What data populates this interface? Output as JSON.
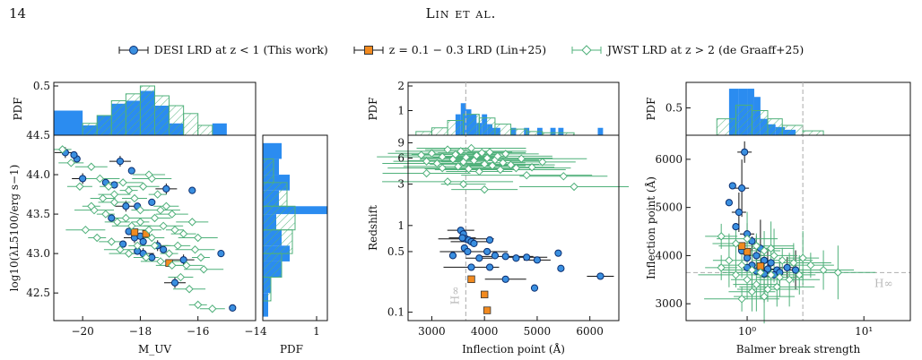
{
  "page": {
    "number": "14",
    "running_head": "Lin et al."
  },
  "legend": [
    {
      "label": "DESI LRD at z < 1  (This work)",
      "color": "#3a8fe0",
      "edge": "#0a2d6e",
      "marker": "circle"
    },
    {
      "label": "z = 0.1 − 0.3 LRD (Lin+25)",
      "color": "#f28a1f",
      "edge": "#333333",
      "marker": "square"
    },
    {
      "label": "JWST LRD at z > 2 (de Graaff+25)",
      "color": "#4fb07a",
      "edge": "#4fb07a",
      "marker": "diamond"
    }
  ],
  "colors": {
    "desi": "#3a8fe0",
    "lin": "#f28a1f",
    "jwst": "#4fb07a",
    "ref_line": "#b8b8b8",
    "hist_fill": "#2b8cf0"
  },
  "chart_data": [
    {
      "type": "scatter",
      "panel": "left",
      "xlabel": "M_UV",
      "ylabel": "log10(λL5100/erg s−1)",
      "xlim": [
        -21,
        -14
      ],
      "ylim": [
        42.15,
        44.5
      ],
      "xticks": [
        "−20",
        "−18",
        "−16",
        "−14"
      ],
      "yticks": [
        "42.5",
        "43.0",
        "43.5",
        "44.0",
        "44.5"
      ],
      "top_hist": {
        "ylabel": "PDF",
        "ytick": "0.5"
      },
      "side_hist": {
        "xlabel": "PDF",
        "xtick": "1"
      },
      "series": [
        {
          "name": "DESI LRD at z < 1  (This work)",
          "points": [
            [
              -20.6,
              44.28
            ],
            [
              -20.2,
              44.2
            ],
            [
              -20.3,
              44.25
            ],
            [
              -20.0,
              43.95
            ],
            [
              -19.2,
              43.9
            ],
            [
              -18.9,
              43.87
            ],
            [
              -18.7,
              44.17
            ],
            [
              -18.3,
              44.05
            ],
            [
              -19.0,
              43.45
            ],
            [
              -18.5,
              43.6
            ],
            [
              -18.1,
              43.6
            ],
            [
              -17.6,
              43.65
            ],
            [
              -17.1,
              43.82
            ],
            [
              -16.2,
              43.8
            ],
            [
              -18.4,
              43.28
            ],
            [
              -18.2,
              43.2
            ],
            [
              -18.0,
              43.22
            ],
            [
              -17.9,
              43.15
            ],
            [
              -17.4,
              43.1
            ],
            [
              -18.6,
              43.12
            ],
            [
              -18.1,
              43.03
            ],
            [
              -17.9,
              43.0
            ],
            [
              -17.6,
              42.95
            ],
            [
              -17.2,
              43.05
            ],
            [
              -16.5,
              42.92
            ],
            [
              -17.0,
              42.88
            ],
            [
              -15.2,
              43.0
            ],
            [
              -16.8,
              42.63
            ],
            [
              -14.8,
              42.31
            ]
          ]
        },
        {
          "name": "z = 0.1 − 0.3 LRD (Lin+25)",
          "points": [
            [
              -18.2,
              43.27
            ],
            [
              -17.8,
              43.25
            ],
            [
              -17.0,
              42.88
            ]
          ]
        },
        {
          "name": "JWST LRD at z > 2 (de Graaff+25)",
          "points": [
            [
              -20.7,
              44.32
            ],
            [
              -20.4,
              44.15
            ],
            [
              -19.7,
              44.1
            ],
            [
              -19.4,
              43.95
            ],
            [
              -19.1,
              43.85
            ],
            [
              -19.3,
              43.7
            ],
            [
              -18.9,
              43.75
            ],
            [
              -18.6,
              43.9
            ],
            [
              -18.4,
              43.8
            ],
            [
              -18.2,
              43.7
            ],
            [
              -17.9,
              43.85
            ],
            [
              -17.6,
              43.95
            ],
            [
              -17.4,
              43.75
            ],
            [
              -17.1,
              43.6
            ],
            [
              -16.9,
              43.5
            ],
            [
              -19.6,
              43.55
            ],
            [
              -19.2,
              43.5
            ],
            [
              -18.8,
              43.4
            ],
            [
              -18.5,
              43.45
            ],
            [
              -18.3,
              43.35
            ],
            [
              -18.0,
              43.4
            ],
            [
              -17.7,
              43.3
            ],
            [
              -17.5,
              43.45
            ],
            [
              -17.2,
              43.35
            ],
            [
              -16.8,
              43.3
            ],
            [
              -16.5,
              43.25
            ],
            [
              -16.2,
              43.4
            ],
            [
              -19.9,
              43.3
            ],
            [
              -19.5,
              43.2
            ],
            [
              -19.0,
              43.15
            ],
            [
              -18.7,
              43.05
            ],
            [
              -18.4,
              43.0
            ],
            [
              -18.1,
              43.1
            ],
            [
              -17.8,
              42.95
            ],
            [
              -17.5,
              43.1
            ],
            [
              -17.3,
              42.9
            ],
            [
              -17.0,
              43.0
            ],
            [
              -16.7,
              43.1
            ],
            [
              -16.4,
              42.85
            ],
            [
              -16.0,
              43.2
            ],
            [
              -19.7,
              43.6
            ],
            [
              -20.1,
              43.85
            ],
            [
              -17.7,
              44.0
            ],
            [
              -16.1,
              43.05
            ],
            [
              -15.9,
              42.95
            ],
            [
              -16.6,
              42.7
            ],
            [
              -16.3,
              42.55
            ],
            [
              -15.8,
              42.8
            ],
            [
              -16.0,
              42.35
            ],
            [
              -15.5,
              42.3
            ],
            [
              -18.9,
              43.65
            ],
            [
              -17.3,
              43.55
            ],
            [
              -18.0,
              43.55
            ],
            [
              -17.6,
              43.2
            ],
            [
              -16.9,
              42.85
            ]
          ]
        }
      ]
    },
    {
      "type": "scatter",
      "panel": "middle",
      "xlabel": "Inflection point (Å)",
      "ylabel": "Redshift",
      "xlim": [
        2550,
        6550
      ],
      "ylim_log": [
        0.08,
        11
      ],
      "xticks": [
        "3000",
        "4000",
        "5000",
        "6000"
      ],
      "yticks": [
        "0.1",
        "0.5",
        "1",
        "3",
        "6",
        "9"
      ],
      "top_hist": {
        "ylabel": "PDF",
        "yticks": [
          "1",
          "2"
        ]
      },
      "reference_line": {
        "x": 3646,
        "label": "H∞"
      },
      "series": [
        {
          "name": "DESI LRD at z < 1  (This work)",
          "points": [
            [
              3550,
              0.88
            ],
            [
              3600,
              0.8
            ],
            [
              3650,
              0.7
            ],
            [
              3700,
              0.68
            ],
            [
              3750,
              0.65
            ],
            [
              3800,
              0.62
            ],
            [
              3580,
              0.72
            ],
            [
              3620,
              0.55
            ],
            [
              3680,
              0.5
            ],
            [
              4100,
              0.68
            ],
            [
              4050,
              0.5
            ],
            [
              3400,
              0.45
            ],
            [
              3900,
              0.42
            ],
            [
              4200,
              0.45
            ],
            [
              4400,
              0.44
            ],
            [
              4600,
              0.42
            ],
            [
              4800,
              0.43
            ],
            [
              5400,
              0.48
            ],
            [
              5000,
              0.4
            ],
            [
              5450,
              0.32
            ],
            [
              3750,
              0.33
            ],
            [
              4100,
              0.33
            ],
            [
              4400,
              0.24
            ],
            [
              4950,
              0.19
            ],
            [
              6200,
              0.26
            ]
          ]
        },
        {
          "name": "z = 0.1 − 0.3 LRD (Lin+25)",
          "points": [
            [
              3750,
              0.24
            ],
            [
              4000,
              0.16
            ],
            [
              4050,
              0.105
            ]
          ]
        },
        {
          "name": "JWST LRD at z > 2 (de Graaff+25)",
          "points": [
            [
              2800,
              6.5
            ],
            [
              2900,
              5.5
            ],
            [
              3000,
              6.8
            ],
            [
              3100,
              5.2
            ],
            [
              3200,
              6.2
            ],
            [
              3300,
              7.5
            ],
            [
              3400,
              5.8
            ],
            [
              3450,
              6.6
            ],
            [
              3500,
              4.8
            ],
            [
              3550,
              7.2
            ],
            [
              3600,
              5.4
            ],
            [
              3650,
              6.1
            ],
            [
              3700,
              4.5
            ],
            [
              3750,
              7.8
            ],
            [
              3800,
              5.6
            ],
            [
              3850,
              6.4
            ],
            [
              3900,
              4.2
            ],
            [
              3950,
              6.9
            ],
            [
              4000,
              5.1
            ],
            [
              4050,
              6.0
            ],
            [
              4100,
              7.0
            ],
            [
              4150,
              4.9
            ],
            [
              4200,
              5.7
            ],
            [
              4250,
              6.3
            ],
            [
              4300,
              4.4
            ],
            [
              4350,
              5.3
            ],
            [
              4400,
              6.7
            ],
            [
              4500,
              5.0
            ],
            [
              4600,
              4.6
            ],
            [
              4700,
              5.9
            ],
            [
              4900,
              4.7
            ],
            [
              5100,
              5.4
            ],
            [
              5500,
              3.7
            ],
            [
              5700,
              2.8
            ],
            [
              3300,
              3.2
            ],
            [
              3600,
              3.0
            ],
            [
              4000,
              2.6
            ],
            [
              2900,
              4.0
            ],
            [
              3200,
              4.6
            ],
            [
              4800,
              3.8
            ]
          ]
        }
      ]
    },
    {
      "type": "scatter",
      "panel": "right",
      "xlabel": "Balmer break strength",
      "ylabel": "Inflection point (Å)",
      "xlim_log": [
        0.3,
        25
      ],
      "ylim": [
        2650,
        6500
      ],
      "xticks": [
        "10⁰",
        "10¹"
      ],
      "yticks": [
        "3000",
        "4000",
        "5000",
        "6000"
      ],
      "top_hist": {
        "ylabel": "PDF",
        "yticks": [
          "0.5"
        ]
      },
      "reference_line": {
        "y": 3646,
        "label": "H∞"
      },
      "series": [
        {
          "name": "DESI LRD at z < 1  (This work)",
          "points": [
            [
              0.95,
              6150
            ],
            [
              0.75,
              5450
            ],
            [
              0.9,
              5400
            ],
            [
              0.7,
              5100
            ],
            [
              0.85,
              4900
            ],
            [
              0.8,
              4600
            ],
            [
              1.0,
              4450
            ],
            [
              1.1,
              4300
            ],
            [
              1.3,
              4150
            ],
            [
              0.9,
              4100
            ],
            [
              1.2,
              4000
            ],
            [
              1.0,
              3950
            ],
            [
              1.4,
              3900
            ],
            [
              1.6,
              3850
            ],
            [
              1.1,
              3800
            ],
            [
              1.3,
              3760
            ],
            [
              1.5,
              3720
            ],
            [
              1.8,
              3700
            ],
            [
              2.2,
              3750
            ],
            [
              1.2,
              3680
            ],
            [
              1.4,
              3620
            ],
            [
              1.7,
              3600
            ],
            [
              2.6,
              3700
            ],
            [
              1.0,
              3750
            ],
            [
              1.9,
              3650
            ]
          ]
        },
        {
          "name": "z = 0.1 − 0.3 LRD (Lin+25)",
          "points": [
            [
              1.0,
              4080
            ],
            [
              0.9,
              4200
            ],
            [
              1.3,
              3780
            ]
          ]
        },
        {
          "name": "JWST LRD at z > 2 (de Graaff+25)",
          "points": [
            [
              0.6,
              4400
            ],
            [
              0.8,
              4250
            ],
            [
              1.0,
              4350
            ],
            [
              1.2,
              4200
            ],
            [
              1.4,
              4100
            ],
            [
              1.7,
              4000
            ],
            [
              2.0,
              3900
            ],
            [
              2.5,
              3850
            ],
            [
              0.7,
              3900
            ],
            [
              0.9,
              3800
            ],
            [
              1.1,
              3700
            ],
            [
              1.3,
              3650
            ],
            [
              1.6,
              3600
            ],
            [
              1.9,
              3550
            ],
            [
              2.3,
              3500
            ],
            [
              0.8,
              3600
            ],
            [
              1.0,
              3500
            ],
            [
              1.2,
              3400
            ],
            [
              1.5,
              3300
            ],
            [
              1.8,
              3350
            ],
            [
              3.0,
              3950
            ],
            [
              3.5,
              3800
            ],
            [
              4.5,
              3700
            ],
            [
              6.0,
              3650
            ],
            [
              0.6,
              3750
            ],
            [
              1.1,
              3250
            ],
            [
              1.4,
              3150
            ],
            [
              0.9,
              3100
            ],
            [
              2.8,
              3600
            ],
            [
              1.6,
              4150
            ]
          ]
        }
      ]
    }
  ]
}
